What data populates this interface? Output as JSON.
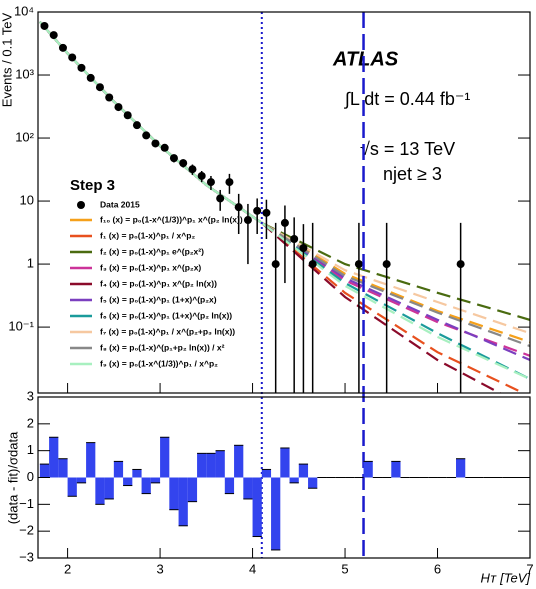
{
  "chart_data": [
    {
      "type": "line",
      "ylabel": "Events / 0.1 TeV",
      "log_y": true,
      "xlim": [
        1.68,
        7
      ],
      "xticks": [
        2,
        3,
        4,
        5,
        6,
        7
      ],
      "ylim": [
        0.009,
        10000
      ],
      "yticks": [
        {
          "value": 0.1,
          "label": "10⁻¹"
        },
        1,
        10,
        {
          "value": 100,
          "label": "10²"
        },
        {
          "value": 1000,
          "label": "10³"
        },
        {
          "value": 10000,
          "label": "10⁴"
        }
      ],
      "annotations": {
        "experiment": "ATLAS",
        "luminosity": "∫L dt = 0.44 fb⁻¹",
        "energy": "√s = 13 TeV",
        "selection": "njet ≥ 3"
      },
      "legend_title": "Step 3",
      "vlines": [
        {
          "x": 4.1,
          "style": "dotted",
          "color": "#1a1acc"
        },
        {
          "x": 5.2,
          "style": "dashed",
          "color": "#1a1acc"
        }
      ],
      "data": {
        "name": "Data 2015",
        "color": "#000000",
        "x": [
          1.75,
          1.85,
          1.95,
          2.05,
          2.15,
          2.25,
          2.35,
          2.45,
          2.55,
          2.65,
          2.75,
          2.85,
          2.95,
          3.05,
          3.15,
          3.25,
          3.35,
          3.45,
          3.55,
          3.65,
          3.75,
          3.85,
          3.95,
          4.05,
          4.15,
          4.25,
          4.35,
          4.45,
          4.55,
          4.65,
          5.15,
          5.45,
          6.25
        ],
        "values": [
          6000,
          4300,
          2700,
          1900,
          1300,
          900,
          640,
          440,
          310,
          230,
          160,
          110,
          82,
          70,
          48,
          40,
          32,
          25,
          20,
          11,
          20,
          8,
          5,
          7,
          6.5,
          1,
          4.5,
          2.5,
          1.8,
          1,
          1,
          1,
          1
        ],
        "errors": [
          100,
          80,
          60,
          50,
          40,
          35,
          28,
          22,
          18,
          15,
          12,
          10,
          9,
          8,
          7,
          6,
          6,
          5,
          5,
          4,
          7,
          5,
          4,
          4,
          4,
          3.5,
          4,
          3,
          2.5,
          3.5,
          3.5,
          3.5,
          3.5
        ]
      },
      "x": [
        1.7,
        2,
        2.5,
        3,
        3.5,
        4.1,
        5,
        6,
        7
      ],
      "series": [
        {
          "name": "f₁₀ (x) = p₀(1-x^(1/3))^p₁ x^(p₂ ln(x))",
          "color": "#f5a01a",
          "values": [
            7000,
            2200,
            380,
            75,
            18,
            4.5,
            0.7,
            0.18,
            0.058
          ]
        },
        {
          "name": "f₁ (x) = p₀(1-x)^p₁ / x^p₂",
          "color": "#e8501e",
          "values": [
            7000,
            2200,
            380,
            75,
            18,
            4.5,
            0.35,
            0.04,
            0.008
          ]
        },
        {
          "name": "f₂ (x) = p₀(1-x)^p₁ e^(p₂x²)",
          "color": "#4a6b10",
          "values": [
            7000,
            2200,
            380,
            75,
            18,
            4.5,
            1.0,
            0.35,
            0.13
          ]
        },
        {
          "name": "f₃ (x) = p₀(1-x)^p₁ x^(p₂x)",
          "color": "#cc3399",
          "values": [
            7000,
            2200,
            380,
            75,
            18,
            4.5,
            0.55,
            0.12,
            0.035
          ]
        },
        {
          "name": "f₄ (x) = p₀(1-x)^p₁ x^(p₂ ln(x))",
          "color": "#8b0a2a",
          "values": [
            7000,
            2200,
            380,
            75,
            18,
            4.5,
            0.3,
            0.03,
            0.005
          ]
        },
        {
          "name": "f₅ (x) = p₀(1-x)^p₁ (1+x)^(p₂x)",
          "color": "#7b3fbf",
          "values": [
            7000,
            2200,
            380,
            75,
            18,
            4.5,
            0.6,
            0.13,
            0.03
          ]
        },
        {
          "name": "f₆ (x) = p₀(1-x)^p₁ (1+x)^(p₂ ln(x))",
          "color": "#1a9b9b",
          "values": [
            7000,
            2200,
            380,
            75,
            18,
            4.5,
            0.5,
            0.08,
            0.015
          ]
        },
        {
          "name": "f₇ (x) = p₀(1-x)^p₁ / x^(p₂+p₃ ln(x))",
          "color": "#f6c8a0",
          "values": [
            7000,
            2200,
            380,
            75,
            18,
            4.5,
            0.8,
            0.25,
            0.08
          ]
        },
        {
          "name": "f₈ (x) = p₀(1-x)^(p₁+p₂ ln(x)) / x²",
          "color": "#888888",
          "values": [
            7000,
            2200,
            380,
            75,
            18,
            4.5,
            0.65,
            0.17,
            0.05
          ]
        },
        {
          "name": "f₉ (x) = p₀(1-x^(1/3))^p₁ / x^p₂",
          "color": "#a8f0c0",
          "values": [
            7000,
            2200,
            380,
            75,
            18,
            4.5,
            0.45,
            0.07,
            0.015
          ]
        }
      ]
    },
    {
      "type": "histogram",
      "ylabel": "(data - fit)/σdata",
      "xlabel": "Hᴛ [TeV]",
      "xlim": [
        1.68,
        7
      ],
      "xticks": [
        2,
        3,
        4,
        5,
        6,
        7
      ],
      "ylim": [
        -3,
        3
      ],
      "yticks": [
        {
          "value": -3,
          "label": "−3"
        },
        {
          "value": -2,
          "label": "−2"
        },
        {
          "value": -1,
          "label": "−1"
        },
        0,
        1,
        2,
        3
      ],
      "color": "#3344ee",
      "bins": [
        1.7,
        1.8,
        1.9,
        2.0,
        2.1,
        2.2,
        2.3,
        2.4,
        2.5,
        2.6,
        2.7,
        2.8,
        2.9,
        3.0,
        3.1,
        3.2,
        3.3,
        3.4,
        3.5,
        3.6,
        3.7,
        3.8,
        3.9,
        4.0,
        4.1,
        4.2,
        4.3,
        4.4,
        4.5,
        4.6,
        4.7,
        4.8,
        4.9,
        5.0,
        5.1,
        5.2,
        5.3,
        5.4,
        5.5,
        5.6,
        5.7,
        5.8,
        5.9,
        6.0,
        6.1,
        6.2,
        6.3,
        6.4,
        6.5,
        6.6,
        6.7,
        6.8,
        6.9,
        7.0
      ],
      "values": [
        0.5,
        1.5,
        0.7,
        -0.7,
        -0.2,
        1.3,
        -1.0,
        -0.8,
        0.6,
        -0.3,
        0.3,
        -0.6,
        -0.2,
        1.5,
        -1.2,
        -1.8,
        -0.9,
        0.9,
        0.9,
        1.0,
        -0.6,
        1.2,
        -0.8,
        -2.2,
        0.3,
        -2.7,
        1.1,
        -0.2,
        0.5,
        -0.4,
        0,
        0,
        0,
        0,
        0,
        0.6,
        0,
        0,
        0.6,
        0,
        0,
        0,
        0,
        0,
        0,
        0.7,
        0,
        0,
        0,
        0,
        0,
        0,
        0
      ]
    }
  ]
}
